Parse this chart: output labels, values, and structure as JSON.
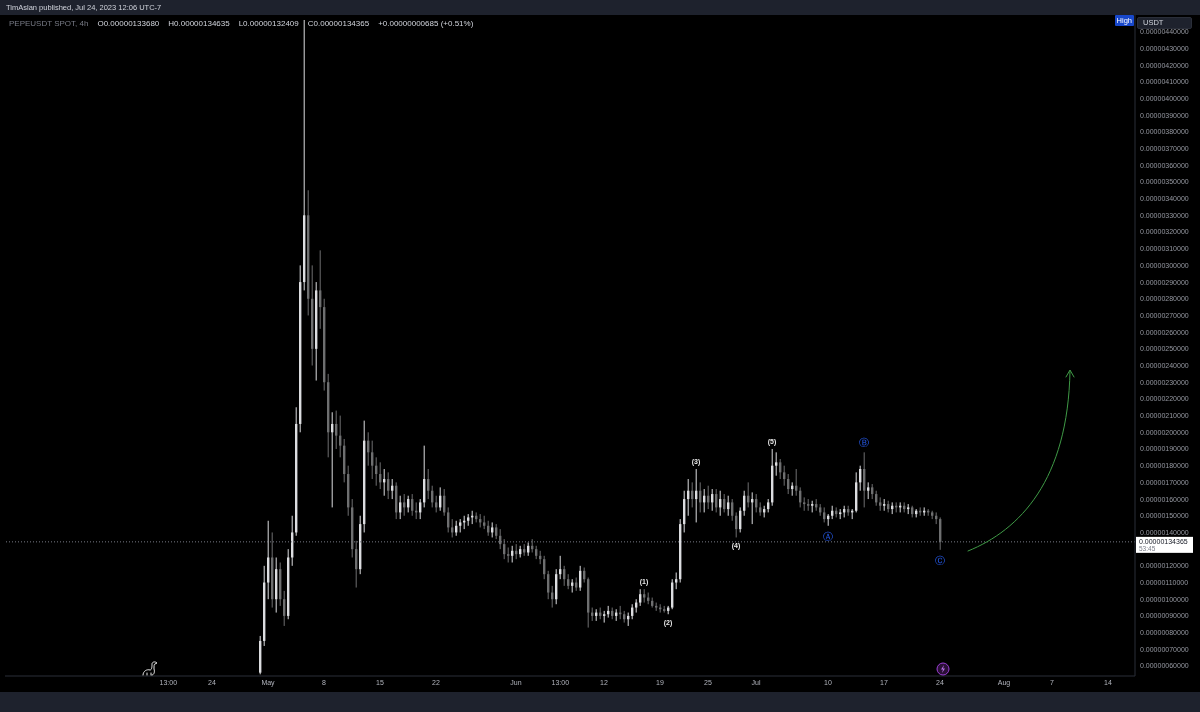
{
  "chart_data": {
    "type": "candlestick",
    "title": "TimAslan published, Jul 24, 2023 12:06 UTC-7",
    "subtitle": "PEPEUSDT SPOT, 4h",
    "ylabel": "USDT",
    "x": [
      "2023-04-30T00:00",
      "2023-04-30T12:00",
      "2023-05-01T00:00",
      "2023-05-01T12:00",
      "2023-05-02T00:00",
      "2023-05-02T12:00",
      "2023-05-03T00:00",
      "2023-05-03T12:00",
      "2023-05-04T00:00",
      "2023-05-04T12:00",
      "2023-05-05T00:00",
      "2023-05-05T12:00",
      "2023-05-06T00:00",
      "2023-05-06T12:00",
      "2023-05-07T00:00",
      "2023-05-07T12:00",
      "2023-05-08T00:00",
      "2023-05-08T12:00",
      "2023-05-09T00:00",
      "2023-05-09T12:00",
      "2023-05-10T00:00",
      "2023-05-10T12:00",
      "2023-05-11T00:00",
      "2023-05-11T12:00",
      "2023-05-12T00:00",
      "2023-05-12T12:00",
      "2023-05-13T00:00",
      "2023-05-13T12:00",
      "2023-05-14T00:00",
      "2023-05-14T12:00",
      "2023-05-15T00:00",
      "2023-05-15T12:00",
      "2023-05-16T00:00",
      "2023-05-16T12:00",
      "2023-05-17T00:00",
      "2023-05-17T12:00",
      "2023-05-18T00:00",
      "2023-05-18T12:00",
      "2023-05-19T00:00",
      "2023-05-19T12:00",
      "2023-05-20T00:00",
      "2023-05-20T12:00",
      "2023-05-21T00:00",
      "2023-05-21T12:00",
      "2023-05-22T00:00",
      "2023-05-22T12:00",
      "2023-05-23T00:00",
      "2023-05-23T12:00",
      "2023-05-24T00:00",
      "2023-05-24T12:00",
      "2023-05-25T00:00",
      "2023-05-25T12:00",
      "2023-05-26T00:00",
      "2023-05-26T12:00",
      "2023-05-27T00:00",
      "2023-05-27T12:00",
      "2023-05-28T00:00",
      "2023-05-28T12:00",
      "2023-05-29T00:00",
      "2023-05-29T12:00",
      "2023-05-30T00:00",
      "2023-05-30T12:00",
      "2023-05-31T00:00",
      "2023-05-31T12:00",
      "2023-06-01T00:00",
      "2023-06-01T12:00",
      "2023-06-02T00:00",
      "2023-06-02T12:00",
      "2023-06-03T00:00",
      "2023-06-03T12:00",
      "2023-06-04T00:00",
      "2023-06-04T12:00",
      "2023-06-05T00:00",
      "2023-06-05T12:00",
      "2023-06-06T00:00",
      "2023-06-06T12:00",
      "2023-06-07T00:00",
      "2023-06-07T12:00",
      "2023-06-08T00:00",
      "2023-06-08T12:00",
      "2023-06-09T00:00",
      "2023-06-09T12:00",
      "2023-06-10T00:00",
      "2023-06-10T12:00",
      "2023-06-11T00:00",
      "2023-06-11T12:00",
      "2023-06-12T00:00",
      "2023-06-12T12:00",
      "2023-06-13T00:00",
      "2023-06-13T12:00",
      "2023-06-14T00:00",
      "2023-06-14T12:00",
      "2023-06-15T00:00",
      "2023-06-15T12:00",
      "2023-06-16T00:00",
      "2023-06-16T12:00",
      "2023-06-17T00:00",
      "2023-06-17T12:00",
      "2023-06-18T00:00",
      "2023-06-18T12:00",
      "2023-06-19T00:00",
      "2023-06-19T12:00",
      "2023-06-20T00:00",
      "2023-06-20T12:00",
      "2023-06-21T00:00",
      "2023-06-21T12:00",
      "2023-06-22T00:00",
      "2023-06-22T12:00",
      "2023-06-23T00:00",
      "2023-06-23T12:00",
      "2023-06-24T00:00",
      "2023-06-24T12:00",
      "2023-06-25T00:00",
      "2023-06-25T12:00",
      "2023-06-26T00:00",
      "2023-06-26T12:00",
      "2023-06-27T00:00",
      "2023-06-27T12:00",
      "2023-06-28T00:00",
      "2023-06-28T12:00",
      "2023-06-29T00:00",
      "2023-06-29T12:00",
      "2023-06-30T00:00",
      "2023-06-30T12:00",
      "2023-07-01T00:00",
      "2023-07-01T12:00",
      "2023-07-02T00:00",
      "2023-07-02T12:00",
      "2023-07-03T00:00",
      "2023-07-03T12:00",
      "2023-07-04T00:00",
      "2023-07-04T12:00",
      "2023-07-05T00:00",
      "2023-07-05T12:00",
      "2023-07-06T00:00",
      "2023-07-06T12:00",
      "2023-07-07T00:00",
      "2023-07-07T12:00",
      "2023-07-08T00:00",
      "2023-07-08T12:00",
      "2023-07-09T00:00",
      "2023-07-09T12:00",
      "2023-07-10T00:00",
      "2023-07-10T12:00",
      "2023-07-11T00:00",
      "2023-07-11T12:00",
      "2023-07-12T00:00",
      "2023-07-12T12:00",
      "2023-07-13T00:00",
      "2023-07-13T12:00",
      "2023-07-14T00:00",
      "2023-07-14T12:00",
      "2023-07-15T00:00",
      "2023-07-15T12:00",
      "2023-07-16T00:00",
      "2023-07-16T12:00",
      "2023-07-17T00:00",
      "2023-07-17T12:00",
      "2023-07-18T00:00",
      "2023-07-18T12:00",
      "2023-07-19T00:00",
      "2023-07-19T12:00",
      "2023-07-20T00:00",
      "2023-07-20T12:00",
      "2023-07-21T00:00",
      "2023-07-21T12:00",
      "2023-07-22T00:00",
      "2023-07-22T12:00",
      "2023-07-23T00:00",
      "2023-07-23T12:00",
      "2023-07-24T00:00"
    ],
    "ohlc": [
      [
        5.6e-07,
        7.8e-07,
        5.5e-07,
        7.5e-07
      ],
      [
        7.5e-07,
        1.2e-06,
        7.2e-07,
        1.1e-06
      ],
      [
        1.1e-06,
        1.47e-06,
        1e-06,
        1.25e-06
      ],
      [
        1.25e-06,
        1.4e-06,
        9.5e-07,
        1e-06
      ],
      [
        1e-06,
        1.25e-06,
        9.2e-07,
        1.18e-06
      ],
      [
        1.18e-06,
        1.22e-06,
        9.6e-07,
        1e-06
      ],
      [
        1e-06,
        1.05e-06,
        8.4e-07,
        9e-07
      ],
      [
        9e-07,
        1.3e-06,
        8.8e-07,
        1.25e-06
      ],
      [
        1.25e-06,
        1.5e-06,
        1.2e-06,
        1.4e-06
      ],
      [
        1.4e-06,
        2.15e-06,
        1.38e-06,
        2.05e-06
      ],
      [
        2.05e-06,
        3e-06,
        2e-06,
        2.9e-06
      ],
      [
        2.9e-06,
        4.47e-06,
        2.85e-06,
        3.3e-06
      ],
      [
        3.3e-06,
        3.45e-06,
        2.7e-06,
        2.8e-06
      ],
      [
        2.8e-06,
        3e-06,
        2.4e-06,
        2.5e-06
      ],
      [
        2.5e-06,
        2.9e-06,
        2.31e-06,
        2.85e-06
      ],
      [
        2.85e-06,
        3.09e-06,
        2.62e-06,
        2.75e-06
      ],
      [
        2.75e-06,
        2.8e-06,
        2.25e-06,
        2.3e-06
      ],
      [
        2.3e-06,
        2.35e-06,
        1.85e-06,
        2e-06
      ],
      [
        2e-06,
        2.12e-06,
        1.55e-06,
        2.05e-06
      ],
      [
        2.05e-06,
        2.13e-06,
        1.9e-06,
        1.98e-06
      ],
      [
        1.98e-06,
        2.1e-06,
        1.85e-06,
        1.92e-06
      ],
      [
        1.92e-06,
        1.96e-06,
        1.7e-06,
        1.75e-06
      ],
      [
        1.75e-06,
        1.8e-06,
        1.5e-06,
        1.55e-06
      ],
      [
        1.55e-06,
        1.6e-06,
        1.25e-06,
        1.3e-06
      ],
      [
        1.3e-06,
        1.35e-06,
        1.07e-06,
        1.18e-06
      ],
      [
        1.18e-06,
        1.5e-06,
        1.15e-06,
        1.45e-06
      ],
      [
        1.45e-06,
        2.07e-06,
        1.4e-06,
        1.95e-06
      ],
      [
        1.95e-06,
        2e-06,
        1.8e-06,
        1.88e-06
      ],
      [
        1.88e-06,
        1.95e-06,
        1.72e-06,
        1.8e-06
      ],
      [
        1.8e-06,
        1.85e-06,
        1.68e-06,
        1.75e-06
      ],
      [
        1.75e-06,
        1.82e-06,
        1.66e-06,
        1.7e-06
      ],
      [
        1.7e-06,
        1.78e-06,
        1.62e-06,
        1.72e-06
      ],
      [
        1.72e-06,
        1.76e-06,
        1.6e-06,
        1.65e-06
      ],
      [
        1.65e-06,
        1.72e-06,
        1.6e-06,
        1.68e-06
      ],
      [
        1.68e-06,
        1.7e-06,
        1.48e-06,
        1.52e-06
      ],
      [
        1.52e-06,
        1.62e-06,
        1.48e-06,
        1.58e-06
      ],
      [
        1.58e-06,
        1.63e-06,
        1.5e-06,
        1.55e-06
      ],
      [
        1.55e-06,
        1.62e-06,
        1.52e-06,
        1.6e-06
      ],
      [
        1.6e-06,
        1.63e-06,
        1.5e-06,
        1.53e-06
      ],
      [
        1.53e-06,
        1.58e-06,
        1.48e-06,
        1.52e-06
      ],
      [
        1.52e-06,
        1.6e-06,
        1.48e-06,
        1.58e-06
      ],
      [
        1.58e-06,
        1.92e-06,
        1.55e-06,
        1.72e-06
      ],
      [
        1.72e-06,
        1.78e-06,
        1.6e-06,
        1.65e-06
      ],
      [
        1.65e-06,
        1.68e-06,
        1.55e-06,
        1.58e-06
      ],
      [
        1.58e-06,
        1.62e-06,
        1.52e-06,
        1.55e-06
      ],
      [
        1.55e-06,
        1.67e-06,
        1.53e-06,
        1.62e-06
      ],
      [
        1.62e-06,
        1.66e-06,
        1.5e-06,
        1.52e-06
      ],
      [
        1.52e-06,
        1.55e-06,
        1.4e-06,
        1.43e-06
      ],
      [
        1.43e-06,
        1.48e-06,
        1.37e-06,
        1.4e-06
      ],
      [
        1.4e-06,
        1.47e-06,
        1.38e-06,
        1.44e-06
      ],
      [
        1.44e-06,
        1.48e-06,
        1.4e-06,
        1.46e-06
      ],
      [
        1.46e-06,
        1.5e-06,
        1.42e-06,
        1.47e-06
      ],
      [
        1.47e-06,
        1.51e-06,
        1.44e-06,
        1.49e-06
      ],
      [
        1.49e-06,
        1.53e-06,
        1.45e-06,
        1.5e-06
      ],
      [
        1.5e-06,
        1.52e-06,
        1.46e-06,
        1.48e-06
      ],
      [
        1.48e-06,
        1.51e-06,
        1.43e-06,
        1.46e-06
      ],
      [
        1.46e-06,
        1.5e-06,
        1.42e-06,
        1.44e-06
      ],
      [
        1.44e-06,
        1.47e-06,
        1.38e-06,
        1.4e-06
      ],
      [
        1.4e-06,
        1.46e-06,
        1.37e-06,
        1.43e-06
      ],
      [
        1.43e-06,
        1.45e-06,
        1.36e-06,
        1.38e-06
      ],
      [
        1.38e-06,
        1.42e-06,
        1.3e-06,
        1.33e-06
      ],
      [
        1.33e-06,
        1.36e-06,
        1.24e-06,
        1.27e-06
      ],
      [
        1.27e-06,
        1.31e-06,
        1.22e-06,
        1.26e-06
      ],
      [
        1.26e-06,
        1.32e-06,
        1.22e-06,
        1.29e-06
      ],
      [
        1.29e-06,
        1.33e-06,
        1.24e-06,
        1.27e-06
      ],
      [
        1.27e-06,
        1.32e-06,
        1.25e-06,
        1.3e-06
      ],
      [
        1.3e-06,
        1.33e-06,
        1.26e-06,
        1.28e-06
      ],
      [
        1.28e-06,
        1.34e-06,
        1.26e-06,
        1.32e-06
      ],
      [
        1.32e-06,
        1.36e-06,
        1.28e-06,
        1.3e-06
      ],
      [
        1.3e-06,
        1.32e-06,
        1.24e-06,
        1.26e-06
      ],
      [
        1.26e-06,
        1.29e-06,
        1.21e-06,
        1.24e-06
      ],
      [
        1.24e-06,
        1.26e-06,
        1.12e-06,
        1.15e-06
      ],
      [
        1.15e-06,
        1.17e-06,
        1e-06,
        1.04e-06
      ],
      [
        1.04e-06,
        1.08e-06,
        9.5e-07,
        1e-06
      ],
      [
        1e-06,
        1.18e-06,
        9.7e-07,
        1.15e-06
      ],
      [
        1.15e-06,
        1.26e-06,
        1.12e-06,
        1.18e-06
      ],
      [
        1.18e-06,
        1.2e-06,
        1.08e-06,
        1.12e-06
      ],
      [
        1.12e-06,
        1.15e-06,
        1.06e-06,
        1.08e-06
      ],
      [
        1.08e-06,
        1.12e-06,
        1.04e-06,
        1.1e-06
      ],
      [
        1.1e-06,
        1.13e-06,
        1.05e-06,
        1.07e-06
      ],
      [
        1.07e-06,
        1.2e-06,
        1.05e-06,
        1.17e-06
      ],
      [
        1.17e-06,
        1.19e-06,
        1.1e-06,
        1.12e-06
      ],
      [
        1.12e-06,
        1.13e-06,
        8.3e-07,
        9.2e-07
      ],
      [
        9.2e-07,
        9.5e-07,
        8.7e-07,
        9e-07
      ],
      [
        9e-07,
        9.4e-07,
        8.7e-07,
        9.2e-07
      ],
      [
        9.2e-07,
        9.5e-07,
        8.8e-07,
        9e-07
      ],
      [
        9e-07,
        9.3e-07,
        8.6e-07,
        9.1e-07
      ],
      [
        9.1e-07,
        9.6e-07,
        8.9e-07,
        9.3e-07
      ],
      [
        9.3e-07,
        9.5e-07,
        8.8e-07,
        9e-07
      ],
      [
        9e-07,
        9.4e-07,
        8.7e-07,
        9.2e-07
      ],
      [
        9.2e-07,
        9.6e-07,
        8.8e-07,
        9.1e-07
      ],
      [
        9.1e-07,
        9.3e-07,
        8.6e-07,
        8.8e-07
      ],
      [
        8.8e-07,
        9.2e-07,
        8.4e-07,
        9e-07
      ],
      [
        9e-07,
        9.7e-07,
        8.8e-07,
        9.5e-07
      ],
      [
        9.5e-07,
        1e-06,
        9.2e-07,
        9.8e-07
      ],
      [
        9.8e-07,
        1.06e-06,
        9.6e-07,
        1.03e-06
      ],
      [
        1.03e-06,
        1.06e-06,
        9.8e-07,
        1.01e-06
      ],
      [
        1.01e-06,
        1.04e-06,
        9.7e-07,
        9.9e-07
      ],
      [
        9.9e-07,
        1.01e-06,
        9.5e-07,
        9.6e-07
      ],
      [
        9.6e-07,
        9.8e-07,
        9.3e-07,
        9.5e-07
      ],
      [
        9.5e-07,
        9.7e-07,
        9.2e-07,
        9.4e-07
      ],
      [
        9.4e-07,
        9.6e-07,
        9.2e-07,
        9.3e-07
      ],
      [
        9.3e-07,
        9.6e-07,
        9.1e-07,
        9.5e-07
      ],
      [
        9.5e-07,
        1.12e-06,
        9.4e-07,
        1.1e-06
      ],
      [
        1.1e-06,
        1.16e-06,
        1.06e-06,
        1.12e-06
      ],
      [
        1.12e-06,
        1.48e-06,
        1.1e-06,
        1.45e-06
      ],
      [
        1.45e-06,
        1.65e-06,
        1.4e-06,
        1.6e-06
      ],
      [
        1.6e-06,
        1.72e-06,
        1.5e-06,
        1.65e-06
      ],
      [
        1.65e-06,
        1.7e-06,
        1.55e-06,
        1.6e-06
      ],
      [
        1.6e-06,
        1.78e-06,
        1.46e-06,
        1.65e-06
      ],
      [
        1.65e-06,
        1.7e-06,
        1.52e-06,
        1.58e-06
      ],
      [
        1.58e-06,
        1.66e-06,
        1.52e-06,
        1.62e-06
      ],
      [
        1.62e-06,
        1.68e-06,
        1.54e-06,
        1.58e-06
      ],
      [
        1.58e-06,
        1.66e-06,
        1.53e-06,
        1.63e-06
      ],
      [
        1.63e-06,
        1.66e-06,
        1.52e-06,
        1.55e-06
      ],
      [
        1.55e-06,
        1.65e-06,
        1.5e-06,
        1.6e-06
      ],
      [
        1.6e-06,
        1.63e-06,
        1.52e-06,
        1.54e-06
      ],
      [
        1.54e-06,
        1.62e-06,
        1.5e-06,
        1.58e-06
      ],
      [
        1.58e-06,
        1.6e-06,
        1.47e-06,
        1.5e-06
      ],
      [
        1.5e-06,
        1.52e-06,
        1.37e-06,
        1.42e-06
      ],
      [
        1.42e-06,
        1.55e-06,
        1.4e-06,
        1.53e-06
      ],
      [
        1.53e-06,
        1.65e-06,
        1.5e-06,
        1.62e-06
      ],
      [
        1.62e-06,
        1.7e-06,
        1.55e-06,
        1.58e-06
      ],
      [
        1.58e-06,
        1.64e-06,
        1.45e-06,
        1.6e-06
      ],
      [
        1.6e-06,
        1.63e-06,
        1.52e-06,
        1.55e-06
      ],
      [
        1.55e-06,
        1.58e-06,
        1.5e-06,
        1.52e-06
      ],
      [
        1.52e-06,
        1.56e-06,
        1.49e-06,
        1.54e-06
      ],
      [
        1.54e-06,
        1.6e-06,
        1.52e-06,
        1.58e-06
      ],
      [
        1.58e-06,
        1.9e-06,
        1.56e-06,
        1.8e-06
      ],
      [
        1.8e-06,
        1.88e-06,
        1.74e-06,
        1.82e-06
      ],
      [
        1.82e-06,
        1.84e-06,
        1.72e-06,
        1.76e-06
      ],
      [
        1.76e-06,
        1.8e-06,
        1.68e-06,
        1.72e-06
      ],
      [
        1.72e-06,
        1.75e-06,
        1.63e-06,
        1.66e-06
      ],
      [
        1.66e-06,
        1.7e-06,
        1.62e-06,
        1.68e-06
      ],
      [
        1.68e-06,
        1.78e-06,
        1.62e-06,
        1.65e-06
      ],
      [
        1.65e-06,
        1.67e-06,
        1.55e-06,
        1.58e-06
      ],
      [
        1.58e-06,
        1.61e-06,
        1.53e-06,
        1.57e-06
      ],
      [
        1.57e-06,
        1.6e-06,
        1.53e-06,
        1.56e-06
      ],
      [
        1.56e-06,
        1.59e-06,
        1.52e-06,
        1.57e-06
      ],
      [
        1.57e-06,
        1.6e-06,
        1.53e-06,
        1.55e-06
      ],
      [
        1.55e-06,
        1.57e-06,
        1.5e-06,
        1.52e-06
      ],
      [
        1.52e-06,
        1.55e-06,
        1.46e-06,
        1.48e-06
      ],
      [
        1.48e-06,
        1.51e-06,
        1.44e-06,
        1.5e-06
      ],
      [
        1.5e-06,
        1.56e-06,
        1.48e-06,
        1.53e-06
      ],
      [
        1.53e-06,
        1.55e-06,
        1.49e-06,
        1.51e-06
      ],
      [
        1.51e-06,
        1.54e-06,
        1.48e-06,
        1.52e-06
      ],
      [
        1.52e-06,
        1.56e-06,
        1.49e-06,
        1.54e-06
      ],
      [
        1.54e-06,
        1.56e-06,
        1.5e-06,
        1.52e-06
      ],
      [
        1.52e-06,
        1.54e-06,
        1.48e-06,
        1.53e-06
      ],
      [
        1.53e-06,
        1.76e-06,
        1.52e-06,
        1.7e-06
      ],
      [
        1.7e-06,
        1.8e-06,
        1.65e-06,
        1.78e-06
      ],
      [
        1.78e-06,
        1.88e-06,
        1.55e-06,
        1.65e-06
      ],
      [
        1.65e-06,
        1.7e-06,
        1.6e-06,
        1.67e-06
      ],
      [
        1.67e-06,
        1.69e-06,
        1.6e-06,
        1.63e-06
      ],
      [
        1.63e-06,
        1.65e-06,
        1.56e-06,
        1.58e-06
      ],
      [
        1.58e-06,
        1.61e-06,
        1.53e-06,
        1.56e-06
      ],
      [
        1.56e-06,
        1.6e-06,
        1.53e-06,
        1.57e-06
      ],
      [
        1.57e-06,
        1.59e-06,
        1.52e-06,
        1.54e-06
      ],
      [
        1.54e-06,
        1.58e-06,
        1.51e-06,
        1.56e-06
      ],
      [
        1.56e-06,
        1.58e-06,
        1.52e-06,
        1.55e-06
      ],
      [
        1.55e-06,
        1.58e-06,
        1.52e-06,
        1.56e-06
      ],
      [
        1.56e-06,
        1.58e-06,
        1.52e-06,
        1.54e-06
      ],
      [
        1.54e-06,
        1.57e-06,
        1.51e-06,
        1.55e-06
      ],
      [
        1.55e-06,
        1.56e-06,
        1.49e-06,
        1.51e-06
      ],
      [
        1.51e-06,
        1.54e-06,
        1.49e-06,
        1.53e-06
      ],
      [
        1.53e-06,
        1.55e-06,
        1.5e-06,
        1.52e-06
      ],
      [
        1.52e-06,
        1.55e-06,
        1.5e-06,
        1.53e-06
      ],
      [
        1.53e-06,
        1.54e-06,
        1.5e-06,
        1.52e-06
      ],
      [
        1.52e-06,
        1.53e-06,
        1.48e-06,
        1.5e-06
      ],
      [
        1.5e-06,
        1.52e-06,
        1.45e-06,
        1.48e-06
      ],
      [
        1.48e-06,
        1.49e-06,
        1.296e-06,
        1.34365e-06
      ]
    ],
    "colors": [
      "#dcdde0",
      "#dcdde0",
      "#dcdde0",
      "#6e6f70",
      "#dcdde0",
      "#6e6f70",
      "#6e6f70",
      "#dcdde0",
      "#dcdde0",
      "#dcdde0",
      "#dcdde0",
      "#dcdde0",
      "#6e6f70",
      "#6e6f70",
      "#dcdde0",
      "#6e6f70",
      "#6e6f70",
      "#6e6f70",
      "#dcdde0",
      "#6e6f70",
      "#6e6f70",
      "#6e6f70",
      "#6e6f70",
      "#6e6f70",
      "#6e6f70",
      "#dcdde0",
      "#dcdde0",
      "#6e6f70",
      "#6e6f70",
      "#6e6f70",
      "#6e6f70",
      "#dcdde0",
      "#6e6f70",
      "#dcdde0",
      "#6e6f70",
      "#dcdde0",
      "#6e6f70",
      "#dcdde0",
      "#6e6f70",
      "#6e6f70",
      "#dcdde0",
      "#dcdde0",
      "#6e6f70",
      "#6e6f70",
      "#6e6f70",
      "#dcdde0",
      "#6e6f70",
      "#6e6f70",
      "#6e6f70",
      "#dcdde0",
      "#dcdde0",
      "#dcdde0",
      "#dcdde0",
      "#dcdde0",
      "#6e6f70",
      "#6e6f70",
      "#6e6f70",
      "#6e6f70",
      "#dcdde0",
      "#6e6f70",
      "#6e6f70",
      "#6e6f70",
      "#6e6f70",
      "#dcdde0",
      "#6e6f70",
      "#dcdde0",
      "#6e6f70",
      "#dcdde0",
      "#6e6f70",
      "#6e6f70",
      "#6e6f70",
      "#6e6f70",
      "#6e6f70",
      "#6e6f70",
      "#dcdde0",
      "#dcdde0",
      "#6e6f70",
      "#6e6f70",
      "#dcdde0",
      "#6e6f70",
      "#dcdde0",
      "#6e6f70",
      "#6e6f70",
      "#6e6f70",
      "#dcdde0",
      "#6e6f70",
      "#dcdde0",
      "#dcdde0",
      "#6e6f70",
      "#dcdde0",
      "#6e6f70",
      "#6e6f70",
      "#dcdde0",
      "#dcdde0",
      "#dcdde0",
      "#dcdde0",
      "#6e6f70",
      "#6e6f70",
      "#6e6f70",
      "#6e6f70",
      "#6e6f70",
      "#6e6f70",
      "#dcdde0",
      "#dcdde0",
      "#dcdde0",
      "#dcdde0",
      "#dcdde0",
      "#dcdde0",
      "#6e6f70",
      "#dcdde0",
      "#6e6f70",
      "#dcdde0",
      "#6e6f70",
      "#dcdde0",
      "#6e6f70",
      "#dcdde0",
      "#6e6f70",
      "#dcdde0",
      "#6e6f70",
      "#6e6f70",
      "#dcdde0",
      "#dcdde0",
      "#6e6f70",
      "#dcdde0",
      "#6e6f70",
      "#6e6f70",
      "#dcdde0",
      "#dcdde0",
      "#dcdde0",
      "#dcdde0",
      "#6e6f70",
      "#6e6f70",
      "#6e6f70",
      "#dcdde0",
      "#6e6f70",
      "#6e6f70",
      "#6e6f70",
      "#6e6f70",
      "#dcdde0",
      "#6e6f70",
      "#6e6f70",
      "#6e6f70",
      "#dcdde0",
      "#dcdde0",
      "#6e6f70",
      "#dcdde0",
      "#dcdde0",
      "#6e6f70",
      "#dcdde0",
      "#dcdde0",
      "#dcdde0",
      "#6e6f70",
      "#dcdde0",
      "#6e6f70",
      "#6e6f70",
      "#6e6f70",
      "#dcdde0",
      "#6e6f70",
      "#dcdde0",
      "#6e6f70",
      "#dcdde0",
      "#6e6f70",
      "#dcdde0",
      "#6e6f70",
      "#dcdde0",
      "#6e6f70",
      "#dcdde0",
      "#6e6f70",
      "#6e6f70",
      "#6e6f70",
      "#6e6f70"
    ],
    "xlim": [
      "2023-03-29T03:00",
      "2023-08-17T09:00"
    ],
    "xticks": [
      {
        "value": "2023-04-18T13:00",
        "label": "13:00"
      },
      {
        "value": "2023-04-24",
        "label": "24"
      },
      {
        "value": "2023-05-01",
        "label": "May"
      },
      {
        "value": "2023-05-08",
        "label": "8"
      },
      {
        "value": "2023-05-15",
        "label": "15"
      },
      {
        "value": "2023-05-22",
        "label": "22"
      },
      {
        "value": "2023-06-01",
        "label": "Jun"
      },
      {
        "value": "2023-06-06T13:00",
        "label": "13:00"
      },
      {
        "value": "2023-06-12",
        "label": "12"
      },
      {
        "value": "2023-06-19",
        "label": "19"
      },
      {
        "value": "2023-06-25",
        "label": "25"
      },
      {
        "value": "2023-07-01",
        "label": "Jul"
      },
      {
        "value": "2023-07-10",
        "label": "10"
      },
      {
        "value": "2023-07-17",
        "label": "17"
      },
      {
        "value": "2023-07-24",
        "label": "24"
      },
      {
        "value": "2023-08-01",
        "label": "Aug"
      },
      {
        "value": "2023-08-07",
        "label": "7"
      },
      {
        "value": "2023-08-14",
        "label": "14"
      }
    ],
    "ylim": [
      5.4e-07,
      4.5e-06
    ],
    "yticks": [
      {
        "value": 6e-07,
        "label": "0.00000060000"
      },
      {
        "value": 7e-07,
        "label": "0.00000070000"
      },
      {
        "value": 8e-07,
        "label": "0.00000080000"
      },
      {
        "value": 9e-07,
        "label": "0.00000090000"
      },
      {
        "value": 1e-06,
        "label": "0.00000100000"
      },
      {
        "value": 1.1e-06,
        "label": "0.00000110000"
      },
      {
        "value": 1.2e-06,
        "label": "0.00000120000"
      },
      {
        "value": 1.4e-06,
        "label": "0.00000140000"
      },
      {
        "value": 1.5e-06,
        "label": "0.00000150000"
      },
      {
        "value": 1.6e-06,
        "label": "0.00000160000"
      },
      {
        "value": 1.7e-06,
        "label": "0.00000170000"
      },
      {
        "value": 1.8e-06,
        "label": "0.00000180000"
      },
      {
        "value": 1.9e-06,
        "label": "0.00000190000"
      },
      {
        "value": 2e-06,
        "label": "0.00000200000"
      },
      {
        "value": 2.1e-06,
        "label": "0.00000210000"
      },
      {
        "value": 2.2e-06,
        "label": "0.00000220000"
      },
      {
        "value": 2.3e-06,
        "label": "0.00000230000"
      },
      {
        "value": 2.4e-06,
        "label": "0.00000240000"
      },
      {
        "value": 2.5e-06,
        "label": "0.00000250000"
      },
      {
        "value": 2.6e-06,
        "label": "0.00000260000"
      },
      {
        "value": 2.7e-06,
        "label": "0.00000270000"
      },
      {
        "value": 2.8e-06,
        "label": "0.00000280000"
      },
      {
        "value": 2.9e-06,
        "label": "0.00000290000"
      },
      {
        "value": 3e-06,
        "label": "0.00000300000"
      },
      {
        "value": 3.1e-06,
        "label": "0.00000310000"
      },
      {
        "value": 3.2e-06,
        "label": "0.00000320000"
      },
      {
        "value": 3.3e-06,
        "label": "0.00000330000"
      },
      {
        "value": 3.4e-06,
        "label": "0.00000340000"
      },
      {
        "value": 3.5e-06,
        "label": "0.00000350000"
      },
      {
        "value": 3.6e-06,
        "label": "0.00000360000"
      },
      {
        "value": 3.7e-06,
        "label": "0.00000370000"
      },
      {
        "value": 3.8e-06,
        "label": "0.00000380000"
      },
      {
        "value": 3.9e-06,
        "label": "0.00000390000"
      },
      {
        "value": 4e-06,
        "label": "0.00000400000"
      },
      {
        "value": 4.1e-06,
        "label": "0.00000410000"
      },
      {
        "value": 4.2e-06,
        "label": "0.00000420000"
      },
      {
        "value": 4.3e-06,
        "label": "0.00000430000"
      },
      {
        "value": 4.4e-06,
        "label": "0.00000440000"
      }
    ],
    "ref_lines": [
      {
        "axis": "y",
        "value": 1.34365e-06,
        "label": "0.00000134365",
        "color": "#787b86",
        "line_style": "dotted"
      }
    ],
    "annotations": [
      "O0.00000133680",
      "H0.00000134635",
      "L0.00000132409",
      "C0.00000134365",
      "+0.00000000685 (+0.51%)",
      "High",
      "53:45",
      {
        "text": "(1)",
        "x": "2023-06-17T00:00",
        "y": 1.06e-06
      },
      {
        "text": "(2)",
        "x": "2023-06-20T00:00",
        "y": 9.1e-07
      },
      {
        "text": "(3)",
        "x": "2023-06-23T12:00",
        "y": 1.78e-06
      },
      {
        "text": "(4)",
        "x": "2023-06-28T12:00",
        "y": 1.37e-06
      },
      {
        "text": "(5)",
        "x": "2023-07-03T00:00",
        "y": 1.9e-06
      },
      {
        "text": "Ⓐ",
        "x": "2023-07-10T00:00",
        "y": 1.44e-06
      },
      {
        "text": "Ⓑ",
        "x": "2023-07-14T12:00",
        "y": 1.88e-06
      },
      {
        "text": "Ⓒ",
        "x": "2023-07-24T00:00",
        "y": 1.296e-06
      }
    ]
  }
}
